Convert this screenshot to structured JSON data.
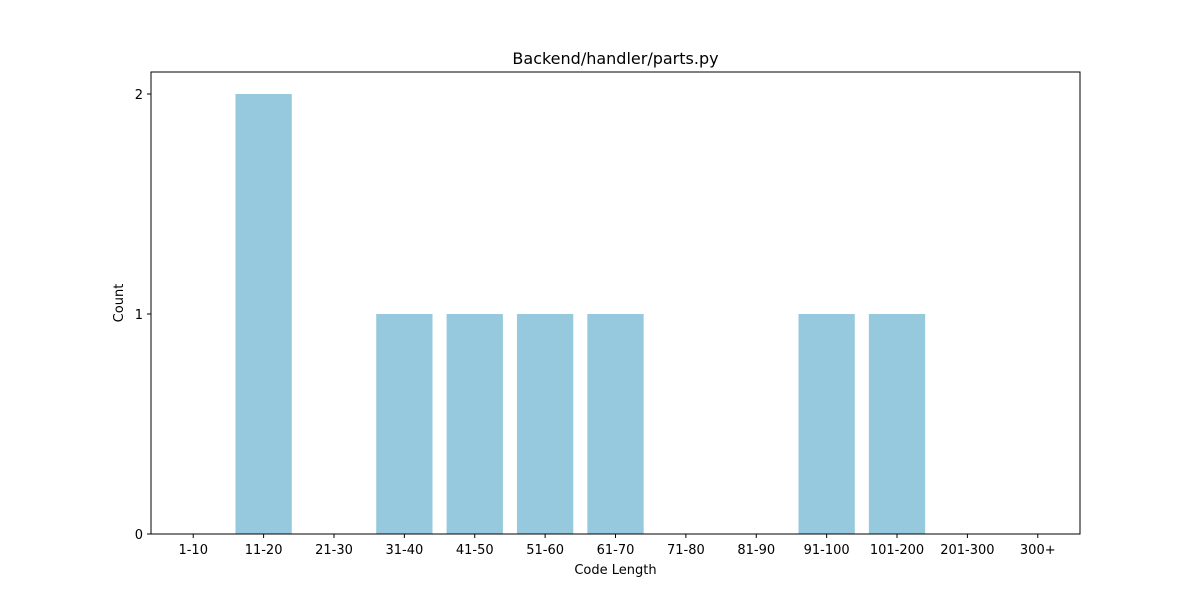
{
  "chart_data": {
    "type": "bar",
    "title": "Backend/handler/parts.py",
    "xlabel": "Code Length",
    "ylabel": "Count",
    "categories": [
      "1-10",
      "11-20",
      "21-30",
      "31-40",
      "41-50",
      "51-60",
      "61-70",
      "71-80",
      "81-90",
      "91-100",
      "101-200",
      "201-300",
      "300+"
    ],
    "values": [
      0,
      2,
      0,
      1,
      1,
      1,
      1,
      0,
      0,
      1,
      1,
      0,
      0
    ],
    "yticks": [
      0,
      1,
      2
    ],
    "ylim": [
      0,
      2.1
    ],
    "grid": false,
    "bar_color": "#96c9dd"
  }
}
